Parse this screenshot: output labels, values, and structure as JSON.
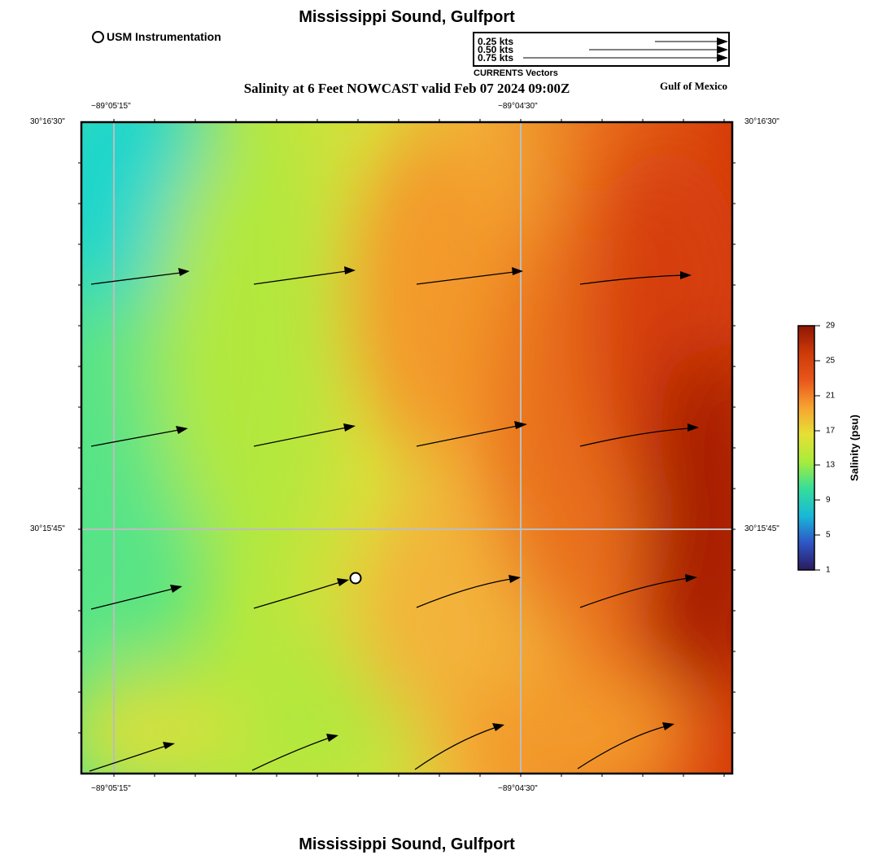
{
  "header": {
    "title": "Mississippi Sound, Gulfport",
    "subtitle": "Salinity at 6 Feet NOWCAST valid Feb 07 2024 09:00Z",
    "region": "Gulf of Mexico"
  },
  "footer": {
    "title": "Mississippi Sound, Gulfport"
  },
  "legend": {
    "station_label": "USM Instrumentation",
    "vector_labels": [
      "0.25 kts",
      "0.50 kts",
      "0.75 kts"
    ],
    "vector_caption": "CURRENTS Vectors"
  },
  "axes": {
    "lon_labels": [
      "−89°05'15\"",
      "−89°04'30\""
    ],
    "lat_labels": [
      "30°16'30\"",
      "30°15'45\""
    ]
  },
  "colorbar": {
    "label": "Salinity (psu)",
    "ticks": [
      "29",
      "25",
      "21",
      "17",
      "13",
      "9",
      "5",
      "1"
    ],
    "stops": [
      "#2a1b5e",
      "#2f55c6",
      "#18b8d8",
      "#35de9a",
      "#a8ec3a",
      "#e6e034",
      "#f7a230",
      "#e8561c",
      "#cc3a08",
      "#8e1604"
    ]
  },
  "field": {
    "colors": {
      "teal": "#1fd6cc",
      "green": "#55e488",
      "lime": "#b2e83e",
      "yellow": "#d9e03a",
      "light_orange": "#f3b43a",
      "orange": "#f39a2a",
      "dark_orange": "#e9701e",
      "red": "#d63c0a",
      "dark_red": "#a61e04"
    }
  },
  "vectors": {
    "color": "#000000",
    "station_fill": "#ffffff"
  }
}
